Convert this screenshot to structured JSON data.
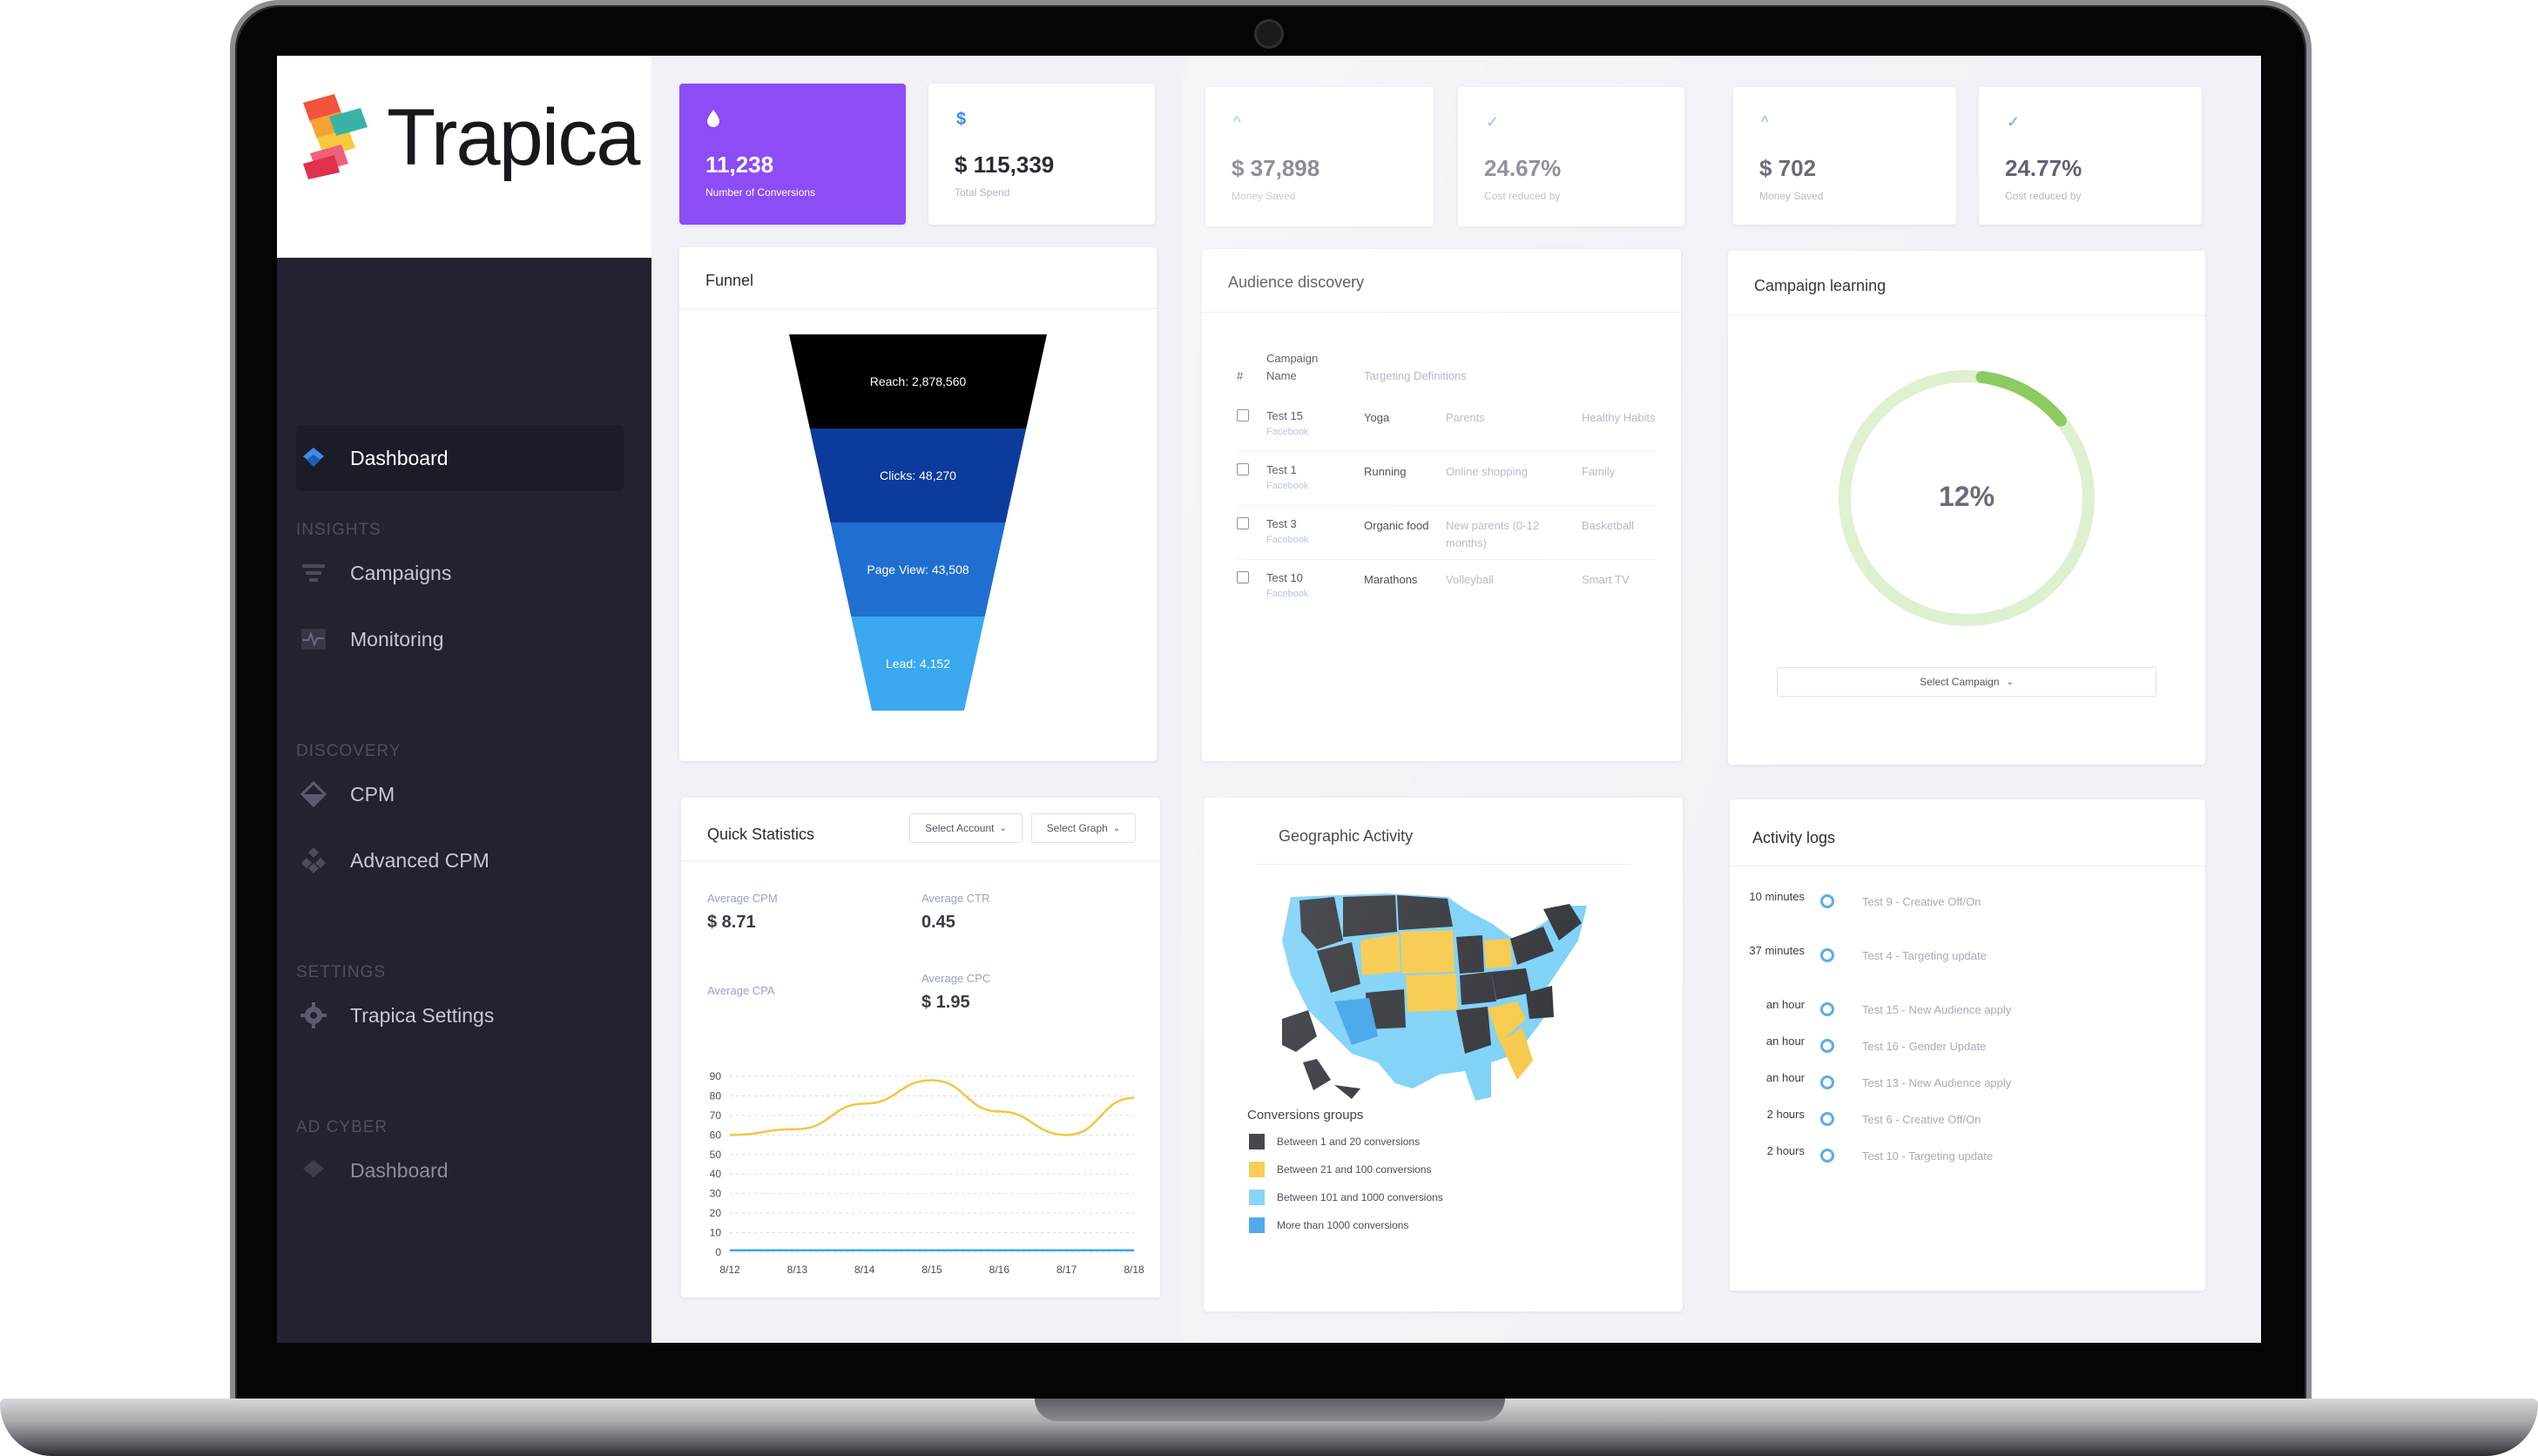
{
  "app": {
    "name": "Trapica",
    "brand_colors": {
      "purple": "#8c4cf6",
      "sidebar": "#222230",
      "accent_blue": "#3a8ee6"
    }
  },
  "sidebar": {
    "items": [
      {
        "label": "Dashboard",
        "icon": "layers-icon",
        "active": true
      },
      {
        "section": "INSIGHTS"
      },
      {
        "label": "Campaigns",
        "icon": "funnel-icon"
      },
      {
        "label": "Monitoring",
        "icon": "pulse-icon"
      },
      {
        "section": "DISCOVERY"
      },
      {
        "label": "CPM",
        "icon": "diamond-icon"
      },
      {
        "label": "Advanced CPM",
        "icon": "nodes-icon"
      },
      {
        "section": "SETTINGS"
      },
      {
        "label": "Trapica Settings",
        "icon": "gear-icon"
      },
      {
        "section": "AD CYBER"
      },
      {
        "label": "Dashboard",
        "icon": "layers-icon",
        "dim": true
      }
    ]
  },
  "kpis": [
    {
      "icon": "droplet-icon",
      "value": "11,238",
      "label": "Number of Conversions"
    },
    {
      "icon": "dollar-icon",
      "value": "$ 115,339",
      "label": "Total Spend"
    },
    {
      "icon": "chevron-up-icon",
      "value": "$ 37,898",
      "label": "Money Saved"
    },
    {
      "icon": "check-icon",
      "value": "24.67%",
      "label": "Cost reduced by"
    },
    {
      "icon": "chevron-up-icon",
      "value": "$ 702",
      "label": "Money Saved"
    },
    {
      "icon": "check-icon",
      "value": "24.77%",
      "label": "Cost reduced by"
    }
  ],
  "funnel": {
    "title": "Funnel",
    "stages": [
      {
        "label": "Reach: 2,878,560",
        "value": 2878560,
        "color": "#000000"
      },
      {
        "label": "Clicks: 48,270",
        "value": 48270,
        "color": "#0b3b9c"
      },
      {
        "label": "Page View: 43,508",
        "value": 43508,
        "color": "#1f6fd1"
      },
      {
        "label": "Lead: 4,152",
        "value": 4152,
        "color": "#3aa8ef"
      }
    ]
  },
  "audience": {
    "title": "Audience discovery",
    "columns": {
      "num": "#",
      "campaign": "Campaign Name",
      "targeting": "Targeting Definitions"
    },
    "rows": [
      {
        "name": "Test 15",
        "source": "Facebook",
        "t1": "Yoga",
        "t2": "Parents",
        "t3": "Healthy Habits"
      },
      {
        "name": "Test 1",
        "source": "Facebook",
        "t1": "Running",
        "t2": "Online shopping",
        "t3": "Family"
      },
      {
        "name": "Test 3",
        "source": "Facebook",
        "t1": "Organic food",
        "t2": "New parents (0-12 months)",
        "t3": "Basketball"
      },
      {
        "name": "Test 10",
        "source": "Facebook",
        "t1": "Marathons",
        "t2": "Volleyball",
        "t3": "Smart TV"
      }
    ]
  },
  "campaign_learning": {
    "title": "Campaign learning",
    "progress_percent": 12,
    "progress_label": "12%",
    "select_label": "Select Campaign"
  },
  "quick_stats": {
    "title": "Quick Statistics",
    "select_account": "Select Account",
    "select_graph": "Select Graph",
    "stats": [
      {
        "label": "Average CPM",
        "value": "$ 8.71"
      },
      {
        "label": "Average CTR",
        "value": "0.45"
      },
      {
        "label": "Average CPA",
        "value": ""
      },
      {
        "label": "Average CPC",
        "value": "$ 1.95"
      }
    ]
  },
  "chart_data": {
    "type": "line",
    "title": "",
    "xlabel": "",
    "ylabel": "",
    "x": [
      "8/12",
      "8/13",
      "8/14",
      "8/15",
      "8/16",
      "8/17",
      "8/18"
    ],
    "ylim": [
      0,
      90
    ],
    "yticks": [
      0,
      10,
      20,
      30,
      40,
      50,
      60,
      70,
      80,
      90
    ],
    "grid": true,
    "series": [
      {
        "color": "#f5c542",
        "values": [
          60,
          63,
          76,
          88,
          72,
          60,
          79
        ]
      },
      {
        "color": "#3aa8ef",
        "values": [
          1,
          1,
          1,
          1,
          1,
          1,
          1
        ]
      }
    ]
  },
  "geo": {
    "title": "Geographic Activity",
    "legend_title": "Conversions groups",
    "legend": [
      {
        "label": "Between 1 and 20 conversions",
        "color": "#2e2f35"
      },
      {
        "label": "Between 21 and 100 conversions",
        "color": "#f7c844"
      },
      {
        "label": "Between 101 and 1000 conversions",
        "color": "#79d0f7"
      },
      {
        "label": "More than 1000 conversions",
        "color": "#3aa0e8"
      }
    ]
  },
  "activity": {
    "title": "Activity logs",
    "logs": [
      {
        "time": "10 minutes",
        "text": "Test 9 - Creative Off/On"
      },
      {
        "time": "37 minutes",
        "text": "Test 4 - Targeting update"
      },
      {
        "time": "an hour",
        "text": "Test 15 - New Audience apply"
      },
      {
        "time": "an hour",
        "text": "Test 16 - Gender Update"
      },
      {
        "time": "an hour",
        "text": "Test 13 - New Audience apply"
      },
      {
        "time": "2 hours",
        "text": "Test 6 - Creative Off/On"
      },
      {
        "time": "2 hours",
        "text": "Test 10 - Targeting update"
      }
    ]
  }
}
